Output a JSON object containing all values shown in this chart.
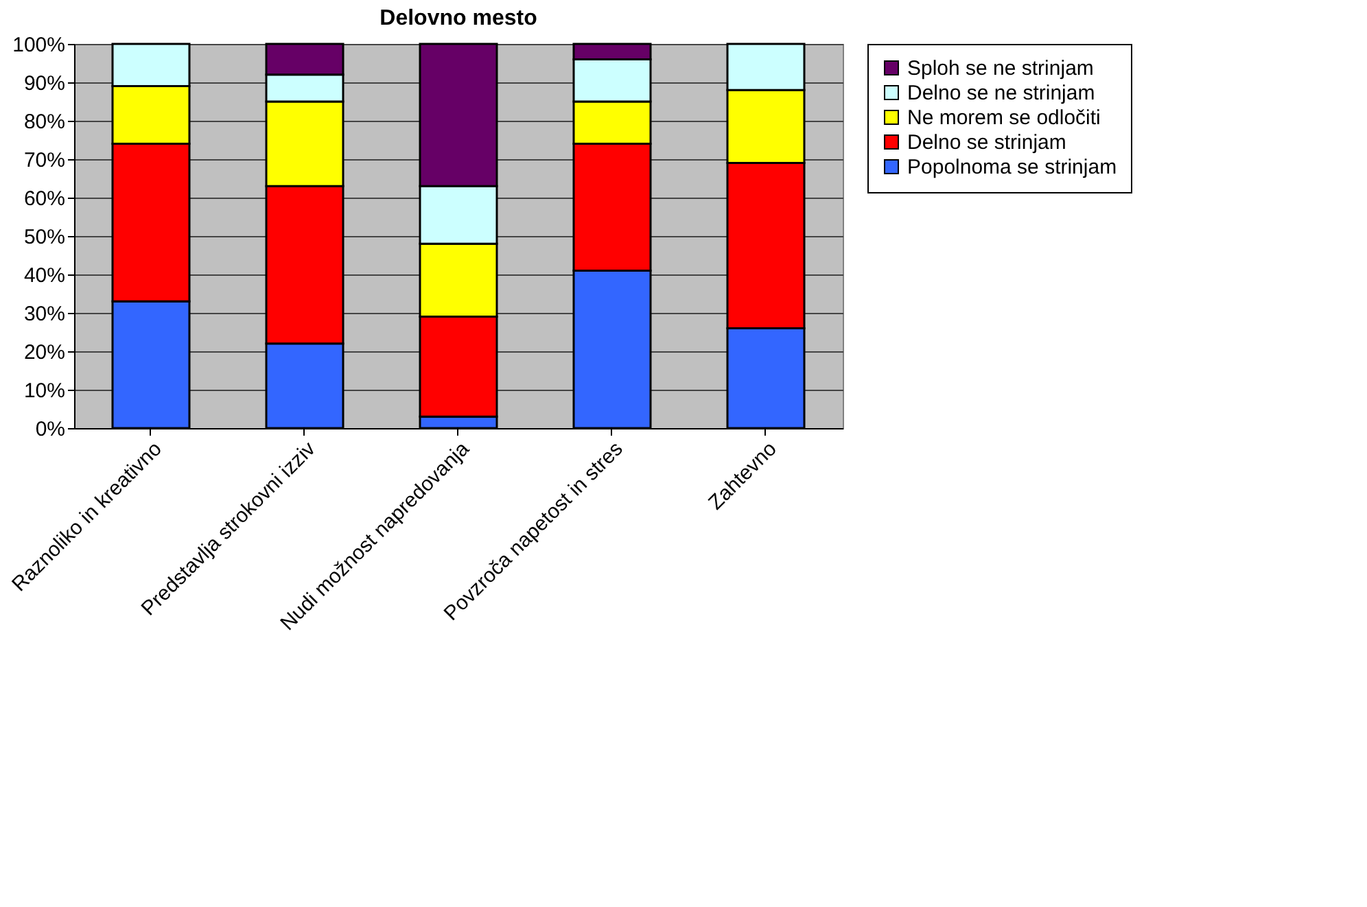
{
  "chart_data": {
    "type": "bar",
    "title": "Delovno mesto",
    "stacked": true,
    "grid": "y",
    "legend": "right",
    "categories": [
      "Raznoliko in kreativno",
      "Predstavlja strokovni izziv",
      "Nudi možnost napredovanja",
      "Povzroča napetost in stres",
      "Zahtevno"
    ],
    "ylim": [
      0,
      100
    ],
    "yticks": [
      {
        "value": 0,
        "label": "0%"
      },
      {
        "value": 10,
        "label": "10%"
      },
      {
        "value": 20,
        "label": "20%"
      },
      {
        "value": 30,
        "label": "30%"
      },
      {
        "value": 40,
        "label": "40%"
      },
      {
        "value": 50,
        "label": "50%"
      },
      {
        "value": 60,
        "label": "60%"
      },
      {
        "value": 70,
        "label": "70%"
      },
      {
        "value": 80,
        "label": "80%"
      },
      {
        "value": 90,
        "label": "90%"
      },
      {
        "value": 100,
        "label": "100%"
      }
    ],
    "series": [
      {
        "name": "Popolnoma se strinjam",
        "color": "#3366ff",
        "values": [
          33,
          22,
          3,
          41,
          26
        ]
      },
      {
        "name": "Delno se strinjam",
        "color": "#ff0000",
        "values": [
          41,
          41,
          26,
          33,
          43
        ]
      },
      {
        "name": "Ne morem  se odločiti",
        "color": "#ffff00",
        "values": [
          15,
          22,
          19,
          11,
          19
        ]
      },
      {
        "name": "Delno se  ne strinjam",
        "color": "#ccffff",
        "values": [
          11,
          7,
          15,
          11,
          12
        ]
      },
      {
        "name": "Sploh se ne strinjam",
        "color": "#660066",
        "values": [
          null,
          8,
          37,
          4,
          null
        ]
      }
    ]
  }
}
